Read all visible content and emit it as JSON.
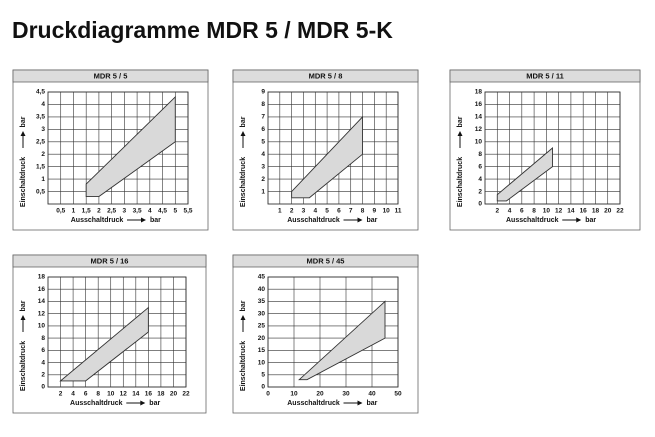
{
  "title": "Druckdiagramme MDR 5 / MDR 5-K",
  "chart_data": [
    {
      "type": "polygon",
      "title": "MDR 5 / 5",
      "x_label": "Ausschaltdruck",
      "x_unit": "bar",
      "y_label": "Einschaltdruck",
      "y_unit": "bar",
      "x": [
        1.5,
        1.5,
        5,
        5,
        2,
        1.5
      ],
      "y": [
        0.3,
        0.8,
        4.3,
        2.5,
        0.3,
        0.3
      ],
      "xlim": [
        0,
        5.5
      ],
      "ylim": [
        0,
        4.5
      ],
      "xticks": [
        {
          "value": 0.5,
          "label": "0,5"
        },
        1,
        {
          "value": 1.5,
          "label": "1,5"
        },
        2,
        {
          "value": 2.5,
          "label": "2,5"
        },
        3,
        {
          "value": 3.5,
          "label": "3,5"
        },
        4,
        {
          "value": 4.5,
          "label": "4,5"
        },
        5,
        {
          "value": 5.5,
          "label": "5,5"
        }
      ],
      "yticks": [
        {
          "value": 0.5,
          "label": "0,5"
        },
        1,
        {
          "value": 1.5,
          "label": "1,5"
        },
        2,
        {
          "value": 2.5,
          "label": "2,5"
        },
        3,
        {
          "value": 3.5,
          "label": "3,5"
        },
        4,
        {
          "value": 4.5,
          "label": "4,5"
        }
      ],
      "color": "#d9d9d9",
      "grid": true
    },
    {
      "type": "polygon",
      "title": "MDR 5 / 8",
      "x_label": "Ausschaltdruck",
      "x_unit": "bar",
      "y_label": "Einschaltdruck",
      "y_unit": "bar",
      "x": [
        2,
        2,
        8,
        8,
        3.5,
        2
      ],
      "y": [
        0.5,
        1,
        7,
        4,
        0.5,
        0.5
      ],
      "xlim": [
        0,
        11
      ],
      "ylim": [
        0,
        9
      ],
      "xticks": [
        1,
        2,
        3,
        4,
        5,
        6,
        7,
        8,
        9,
        10,
        11
      ],
      "yticks": [
        1,
        2,
        3,
        4,
        5,
        6,
        7,
        8,
        9
      ],
      "color": "#d9d9d9",
      "grid": true
    },
    {
      "type": "polygon",
      "title": "MDR 5 / 11",
      "x_label": "Ausschaltdruck",
      "x_unit": "bar",
      "y_label": "Einschaltdruck",
      "y_unit": "bar",
      "x": [
        2,
        2,
        11,
        11,
        3.5,
        2
      ],
      "y": [
        0.5,
        1.5,
        9,
        6,
        0.5,
        0.5
      ],
      "xlim": [
        0,
        22
      ],
      "ylim": [
        0,
        18
      ],
      "xticks": [
        2,
        4,
        6,
        8,
        10,
        12,
        14,
        16,
        18,
        20,
        22
      ],
      "yticks": [
        0,
        2,
        4,
        6,
        8,
        10,
        12,
        14,
        16,
        18
      ],
      "color": "#d9d9d9",
      "grid": true
    },
    {
      "type": "polygon",
      "title": "MDR 5 / 16",
      "x_label": "Ausschaltdruck",
      "x_unit": "bar",
      "y_label": "Einschaltdruck",
      "y_unit": "bar",
      "x": [
        2,
        16,
        16,
        6,
        2
      ],
      "y": [
        1,
        13,
        9,
        1,
        1
      ],
      "xlim": [
        0,
        22
      ],
      "ylim": [
        0,
        18
      ],
      "xticks": [
        2,
        4,
        6,
        8,
        10,
        12,
        14,
        16,
        18,
        20,
        22
      ],
      "yticks": [
        0,
        2,
        4,
        6,
        8,
        10,
        12,
        14,
        16,
        18
      ],
      "color": "#d9d9d9",
      "grid": true
    },
    {
      "type": "polygon",
      "title": "MDR 5 / 45",
      "x_label": "Ausschaltdruck",
      "x_unit": "bar",
      "y_label": "Einschaltdruck",
      "y_unit": "bar",
      "x": [
        12,
        45,
        45,
        15,
        12
      ],
      "y": [
        3,
        35,
        20,
        3,
        3
      ],
      "xlim": [
        0,
        50
      ],
      "ylim": [
        0,
        45
      ],
      "xticks": [
        0,
        10,
        20,
        30,
        40,
        50
      ],
      "yticks": [
        0,
        5,
        10,
        15,
        20,
        25,
        30,
        35,
        40,
        45
      ],
      "color": "#d9d9d9",
      "grid": true
    }
  ]
}
